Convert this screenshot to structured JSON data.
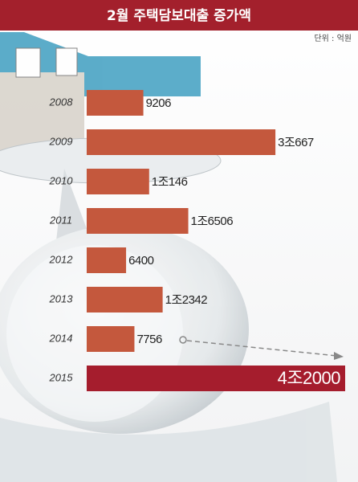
{
  "chart_data": {
    "type": "bar",
    "orientation": "horizontal",
    "title": "2월 주택담보대출 증가액",
    "unit": "단위 : 억원",
    "categories": [
      "2008",
      "2009",
      "2010",
      "2011",
      "2012",
      "2013",
      "2014",
      "2015"
    ],
    "values": [
      9206,
      30667,
      10146,
      16506,
      6400,
      12342,
      7756,
      42000
    ],
    "value_labels": [
      "9206",
      "3조667",
      "1조146",
      "1조6506",
      "6400",
      "1조2342",
      "7756",
      "4조2000"
    ],
    "colors": [
      "#c4583d",
      "#c4583d",
      "#c4583d",
      "#c4583d",
      "#c4583d",
      "#c4583d",
      "#c4583d",
      "#a51d2d"
    ]
  }
}
